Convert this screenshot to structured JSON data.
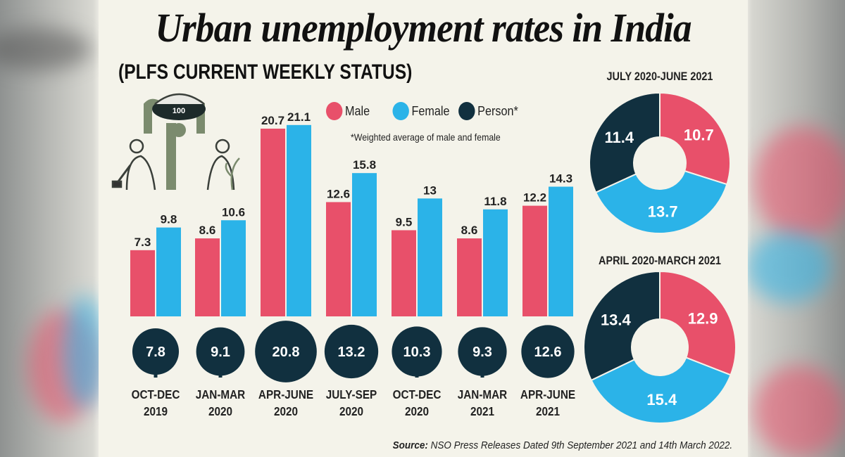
{
  "title": "Urban unemployment rates in India",
  "subtitle": "(PLFS CURRENT WEEKLY STATUS)",
  "legend": [
    {
      "label": "Male",
      "color": "#e8506a"
    },
    {
      "label": "Female",
      "color": "#2bb3e8"
    },
    {
      "label": "Person*",
      "color": "#11303f"
    }
  ],
  "note": "*Weighted average of male and female",
  "source_label": "Source:",
  "source_text": "NSO Press Releases Dated 9th September 2021 and 14th March 2022.",
  "illustration_badge": "100",
  "chart_data": [
    {
      "type": "bar",
      "categories": [
        [
          "OCT-DEC",
          "2019"
        ],
        [
          "JAN-MAR",
          "2020"
        ],
        [
          "APR-JUNE",
          "2020"
        ],
        [
          "JULY-SEP",
          "2020"
        ],
        [
          "OCT-DEC",
          "2020"
        ],
        [
          "JAN-MAR",
          "2021"
        ],
        [
          "APR-JUNE",
          "2021"
        ]
      ],
      "series": [
        {
          "name": "Male",
          "color": "#e8506a",
          "values": [
            7.3,
            8.6,
            20.7,
            12.6,
            9.5,
            8.6,
            12.2
          ]
        },
        {
          "name": "Female",
          "color": "#2bb3e8",
          "values": [
            9.8,
            10.6,
            21.1,
            15.8,
            13,
            11.8,
            14.3
          ]
        },
        {
          "name": "Person*",
          "color": "#11303f",
          "values": [
            7.8,
            9.1,
            20.8,
            13.2,
            10.3,
            9.3,
            12.6
          ]
        }
      ],
      "grid": false
    },
    {
      "type": "pie",
      "title": "JULY 2020-JUNE 2021",
      "labels": [
        "Male",
        "Female",
        "Person*"
      ],
      "values": [
        10.7,
        13.7,
        11.4
      ],
      "colors": [
        "#e8506a",
        "#2bb3e8",
        "#11303f"
      ]
    },
    {
      "type": "pie",
      "title": "APRIL 2020-MARCH 2021",
      "labels": [
        "Male",
        "Female",
        "Person*"
      ],
      "values": [
        12.9,
        15.4,
        13.4
      ],
      "colors": [
        "#e8506a",
        "#2bb3e8",
        "#11303f"
      ]
    }
  ]
}
